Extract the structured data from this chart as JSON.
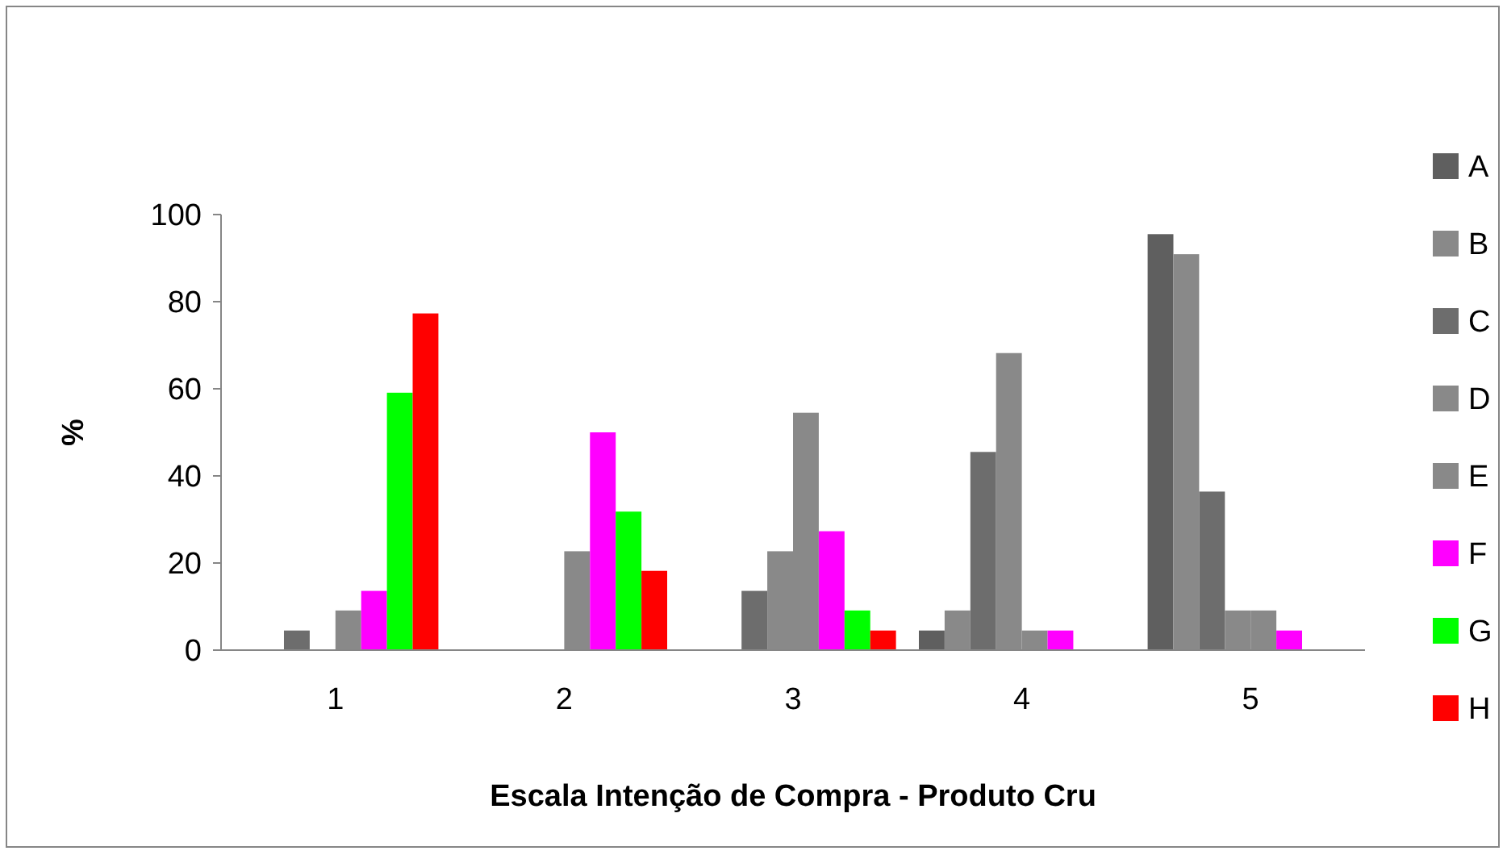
{
  "chart_data": {
    "type": "bar",
    "xlabel": "Escala Intenção de Compra - Produto Cru",
    "ylabel": "%",
    "categories": [
      "1",
      "2",
      "3",
      "4",
      "5"
    ],
    "series": [
      {
        "name": "A",
        "color": "#5f5f5f",
        "values": [
          0,
          0,
          0,
          4.5,
          95.5
        ]
      },
      {
        "name": "B",
        "color": "#898989",
        "values": [
          0,
          0,
          0,
          9.1,
          90.9
        ]
      },
      {
        "name": "C",
        "color": "#6d6d6d",
        "values": [
          4.5,
          0,
          13.6,
          45.5,
          36.4
        ]
      },
      {
        "name": "D",
        "color": "#898989",
        "values": [
          0,
          0,
          22.7,
          68.2,
          9.1
        ]
      },
      {
        "name": "E",
        "color": "#898989",
        "values": [
          9.1,
          22.7,
          54.5,
          4.5,
          9.1
        ]
      },
      {
        "name": "F",
        "color": "#ff00ff",
        "values": [
          13.6,
          50,
          27.3,
          4.5,
          4.5
        ]
      },
      {
        "name": "G",
        "color": "#00ff00",
        "values": [
          59.1,
          31.8,
          9.1,
          0,
          0
        ]
      },
      {
        "name": "H",
        "color": "#ff0000",
        "values": [
          77.3,
          18.2,
          4.5,
          0,
          0
        ]
      }
    ],
    "ylim": [
      0,
      100
    ],
    "yticks": [
      0,
      20,
      40,
      60,
      80,
      100
    ],
    "grid": false,
    "legend": "right"
  }
}
